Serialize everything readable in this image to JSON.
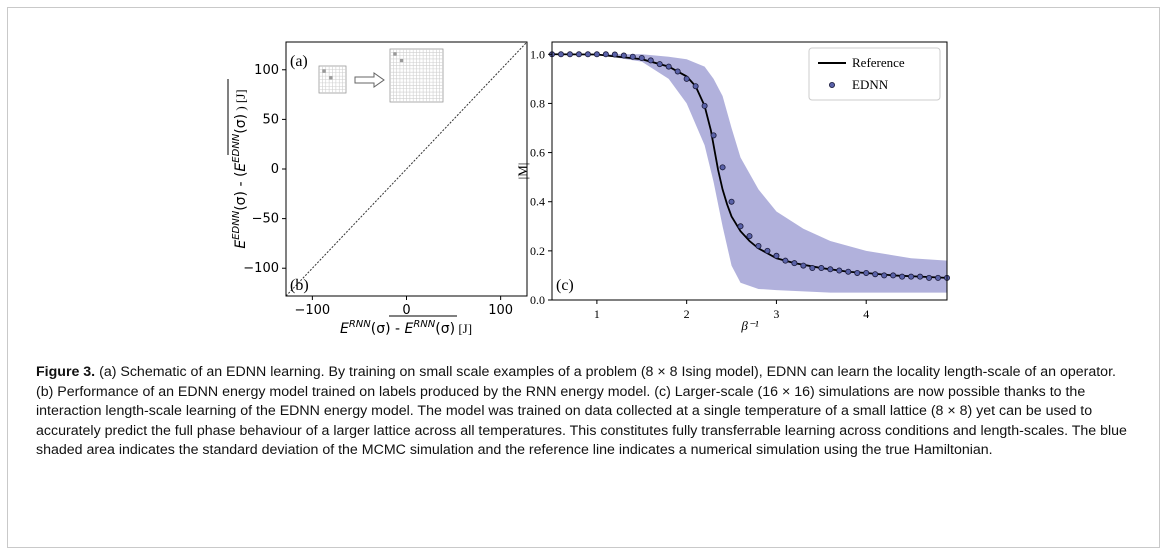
{
  "figure": {
    "caption_label": "Figure 3.",
    "caption_text": "(a) Schematic of an EDNN learning. By training on small scale examples of a problem (8 × 8 Ising model), EDNN can learn the locality length-scale of an operator. (b) Performance of an EDNN energy model trained on labels produced by the RNN energy model. (c) Larger-scale (16 × 16) simulations are now possible thanks to the interaction length-scale learning of the EDNN energy model. The model was trained on data collected at a single temperature of a small lattice (8 × 8) yet can be used to accurately predict the full phase behaviour of a larger lattice across all temperatures. This constitutes fully transferrable learning across conditions and length-scales. The blue shaded area indicates the standard deviation of the MCMC simulation and the reference line indicates a numerical simulation using the true Hamiltonian."
  },
  "chart_data": [
    {
      "panel_label_top": "(a)",
      "panel_label": "(b)",
      "type": "line",
      "x_label_base": "E",
      "x_label_sup": "RNN",
      "x_label_arg": "(σ) - ",
      "x_label_bar_base": "E",
      "x_label_bar_sup": "RNN",
      "x_label_bar_arg": "(σ)",
      "x_label_unit": " [J]",
      "y_label_base": "E",
      "y_label_sup": "EDNN",
      "y_label_arg": "(σ) - (",
      "y_label_bar_base": "E",
      "y_label_bar_sup": "EDNN",
      "y_label_bar_arg": "(σ)",
      "y_label_unit": " ) [J]",
      "xlim": [
        -128,
        128
      ],
      "ylim": [
        -128,
        128
      ],
      "xticks": [
        -100,
        0,
        100
      ],
      "xtick_labels": [
        "−100",
        "0",
        "100"
      ],
      "yticks": [
        -100,
        -50,
        0,
        50,
        100
      ],
      "ytick_labels": [
        "−100",
        "−50",
        "0",
        "50",
        "100"
      ],
      "series": [
        {
          "x": [
            -128,
            128
          ],
          "y": [
            -128,
            128
          ]
        }
      ],
      "inset": {
        "small_grid": 8,
        "large_grid": 16
      }
    },
    {
      "panel_label": "(c)",
      "type": "line",
      "xlabel": "β⁻¹",
      "ylabel": "|M|",
      "xlim": [
        0.5,
        4.9
      ],
      "ylim": [
        0.0,
        1.05
      ],
      "xticks": [
        1,
        2,
        3,
        4
      ],
      "yticks": [
        0.0,
        0.2,
        0.4,
        0.6,
        0.8,
        1.0
      ],
      "ytick_labels": [
        "0.0",
        "0.2",
        "0.4",
        "0.6",
        "0.8",
        "1.0"
      ],
      "legend": {
        "position": "top-right",
        "entries": [
          "Reference",
          "EDNN"
        ]
      },
      "reference": {
        "x": [
          0.5,
          1.0,
          1.5,
          1.8,
          2.0,
          2.1,
          2.2,
          2.27,
          2.35,
          2.4,
          2.45,
          2.5,
          2.6,
          2.7,
          2.8,
          3.0,
          3.2,
          3.5,
          3.8,
          4.0,
          4.3,
          4.6,
          4.9
        ],
        "y": [
          1.0,
          0.999,
          0.98,
          0.95,
          0.91,
          0.87,
          0.79,
          0.69,
          0.53,
          0.45,
          0.39,
          0.34,
          0.28,
          0.24,
          0.21,
          0.17,
          0.15,
          0.13,
          0.115,
          0.11,
          0.1,
          0.095,
          0.09
        ]
      },
      "ednn": {
        "x": [
          0.5,
          0.6,
          0.7,
          0.8,
          0.9,
          1.0,
          1.1,
          1.2,
          1.3,
          1.4,
          1.5,
          1.6,
          1.7,
          1.8,
          1.9,
          2.0,
          2.1,
          2.2,
          2.3,
          2.4,
          2.5,
          2.6,
          2.7,
          2.8,
          2.9,
          3.0,
          3.1,
          3.2,
          3.3,
          3.4,
          3.5,
          3.6,
          3.7,
          3.8,
          3.9,
          4.0,
          4.1,
          4.2,
          4.3,
          4.4,
          4.5,
          4.6,
          4.7,
          4.8,
          4.9
        ],
        "y": [
          1.0,
          1.0,
          1.0,
          1.0,
          1.0,
          1.0,
          1.0,
          0.999,
          0.995,
          0.99,
          0.985,
          0.975,
          0.96,
          0.95,
          0.93,
          0.9,
          0.87,
          0.79,
          0.67,
          0.54,
          0.4,
          0.3,
          0.26,
          0.22,
          0.2,
          0.18,
          0.16,
          0.15,
          0.14,
          0.13,
          0.13,
          0.125,
          0.12,
          0.115,
          0.11,
          0.11,
          0.105,
          0.1,
          0.1,
          0.095,
          0.095,
          0.095,
          0.09,
          0.09,
          0.09
        ]
      },
      "band": {
        "x": [
          0.5,
          1.0,
          1.5,
          1.8,
          2.0,
          2.2,
          2.3,
          2.4,
          2.5,
          2.6,
          2.8,
          3.0,
          3.3,
          3.6,
          4.0,
          4.5,
          4.9
        ],
        "upper": [
          1.0,
          1.0,
          1.0,
          0.99,
          0.98,
          0.95,
          0.9,
          0.83,
          0.7,
          0.58,
          0.45,
          0.36,
          0.29,
          0.24,
          0.2,
          0.17,
          0.16
        ],
        "lower": [
          1.0,
          0.999,
          0.97,
          0.9,
          0.8,
          0.63,
          0.48,
          0.3,
          0.14,
          0.07,
          0.045,
          0.04,
          0.035,
          0.03,
          0.03,
          0.03,
          0.03
        ]
      },
      "colors": {
        "band": "#a8a8d8",
        "marker_fill": "#5a62a8",
        "line": "#000000"
      }
    }
  ]
}
